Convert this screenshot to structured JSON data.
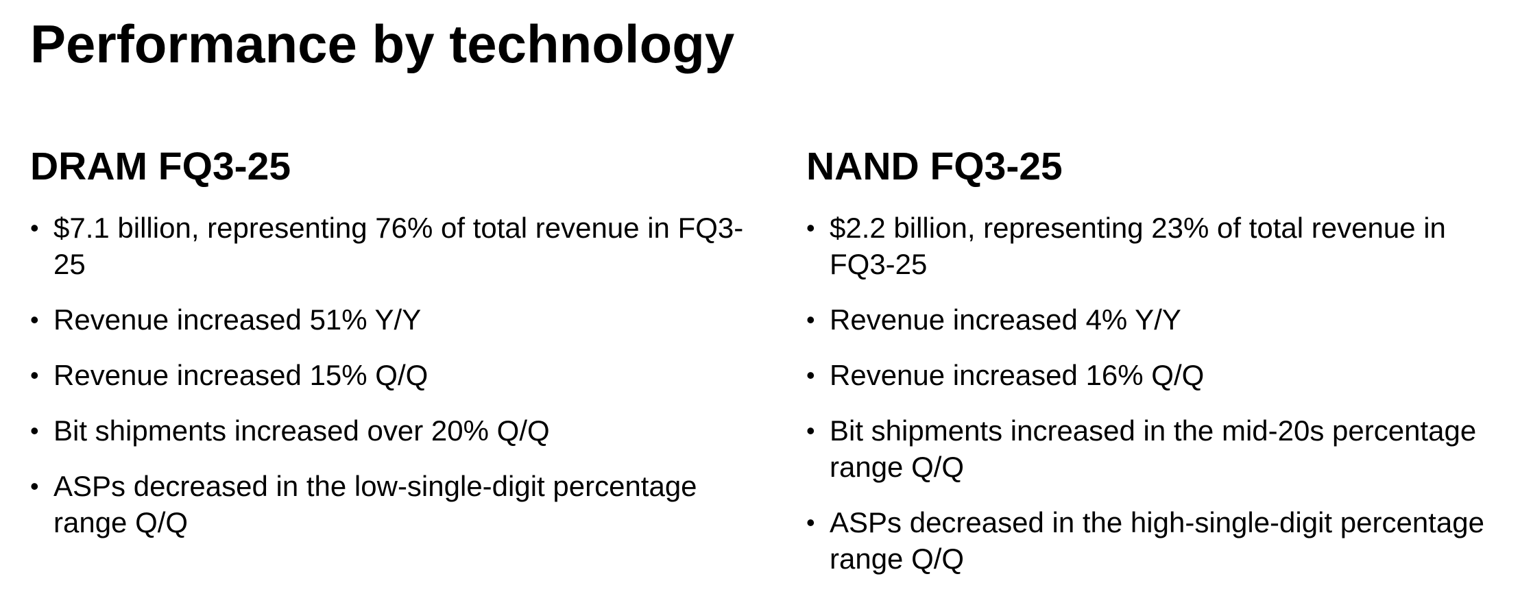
{
  "title": "Performance by technology",
  "dram": {
    "heading": "DRAM FQ3-25",
    "bullets": [
      "$7.1 billion, representing 76% of total revenue in FQ3-25",
      "Revenue increased 51% Y/Y",
      "Revenue increased 15% Q/Q",
      "Bit shipments increased over 20% Q/Q",
      "ASPs decreased in the low-single-digit percentage range Q/Q"
    ]
  },
  "nand": {
    "heading": "NAND FQ3-25",
    "bullets": [
      "$2.2 billion, representing 23% of total revenue in FQ3-25",
      "Revenue increased 4% Y/Y",
      "Revenue increased 16% Q/Q",
      "Bit shipments increased in the mid-20s percentage range Q/Q",
      "ASPs decreased in the high-single-digit percentage range Q/Q"
    ]
  }
}
